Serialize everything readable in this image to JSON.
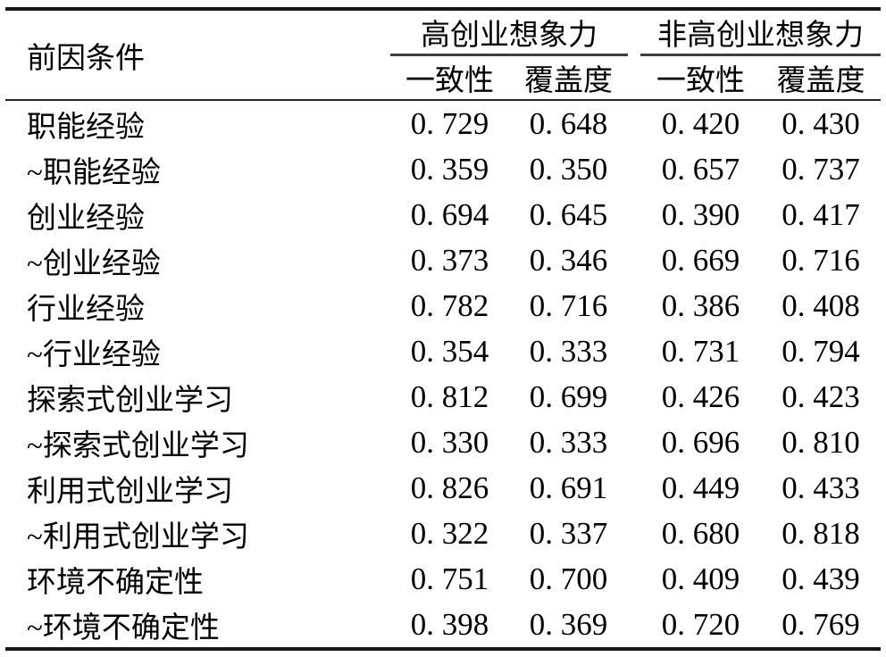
{
  "page": {
    "background": "#ffffff",
    "text_color": "#000000",
    "rule_color": "#161616",
    "midrule_color": "#3e3e3e",
    "header_rule_color": "#262626"
  },
  "table": {
    "header": {
      "antecedent": "前因条件",
      "group1": "高创业想象力",
      "group2": "非高创业想象力",
      "g1_consistency": "一致性",
      "g1_coverage": "覆盖度",
      "g2_consistency": "一致性",
      "g2_coverage": "覆盖度"
    },
    "rows": [
      {
        "label": "职能经验",
        "v1": "0. 729",
        "v2": "0. 648",
        "v3": "0. 420",
        "v4": "0. 430"
      },
      {
        "label": "~职能经验",
        "v1": "0. 359",
        "v2": "0. 350",
        "v3": "0. 657",
        "v4": "0. 737"
      },
      {
        "label": "创业经验",
        "v1": "0. 694",
        "v2": "0. 645",
        "v3": "0. 390",
        "v4": "0. 417"
      },
      {
        "label": "~创业经验",
        "v1": "0. 373",
        "v2": "0. 346",
        "v3": "0. 669",
        "v4": "0. 716"
      },
      {
        "label": "行业经验",
        "v1": "0. 782",
        "v2": "0. 716",
        "v3": "0. 386",
        "v4": "0. 408"
      },
      {
        "label": "~行业经验",
        "v1": "0. 354",
        "v2": "0. 333",
        "v3": "0. 731",
        "v4": "0. 794"
      },
      {
        "label": "探索式创业学习",
        "v1": "0. 812",
        "v2": "0. 699",
        "v3": "0. 426",
        "v4": "0. 423"
      },
      {
        "label": "~探索式创业学习",
        "v1": "0. 330",
        "v2": "0. 333",
        "v3": "0. 696",
        "v4": "0. 810"
      },
      {
        "label": "利用式创业学习",
        "v1": "0. 826",
        "v2": "0. 691",
        "v3": "0. 449",
        "v4": "0. 433"
      },
      {
        "label": "~利用式创业学习",
        "v1": "0. 322",
        "v2": "0. 337",
        "v3": "0. 680",
        "v4": "0. 818"
      },
      {
        "label": "环境不确定性",
        "v1": "0. 751",
        "v2": "0. 700",
        "v3": "0. 409",
        "v4": "0. 439"
      },
      {
        "label": "~环境不确定性",
        "v1": "0. 398",
        "v2": "0. 369",
        "v3": "0. 720",
        "v4": "0. 769"
      }
    ]
  },
  "chart_data": {
    "type": "table",
    "row_header": "前因条件",
    "column_groups": [
      {
        "label": "高创业想象力",
        "columns": [
          "一致性",
          "覆盖度"
        ]
      },
      {
        "label": "非高创业想象力",
        "columns": [
          "一致性",
          "覆盖度"
        ]
      }
    ],
    "rows": [
      {
        "condition": "职能经验",
        "values": [
          0.729,
          0.648,
          0.42,
          0.43
        ]
      },
      {
        "condition": "~职能经验",
        "values": [
          0.359,
          0.35,
          0.657,
          0.737
        ]
      },
      {
        "condition": "创业经验",
        "values": [
          0.694,
          0.645,
          0.39,
          0.417
        ]
      },
      {
        "condition": "~创业经验",
        "values": [
          0.373,
          0.346,
          0.669,
          0.716
        ]
      },
      {
        "condition": "行业经验",
        "values": [
          0.782,
          0.716,
          0.386,
          0.408
        ]
      },
      {
        "condition": "~行业经验",
        "values": [
          0.354,
          0.333,
          0.731,
          0.794
        ]
      },
      {
        "condition": "探索式创业学习",
        "values": [
          0.812,
          0.699,
          0.426,
          0.423
        ]
      },
      {
        "condition": "~探索式创业学习",
        "values": [
          0.33,
          0.333,
          0.696,
          0.81
        ]
      },
      {
        "condition": "利用式创业学习",
        "values": [
          0.826,
          0.691,
          0.449,
          0.433
        ]
      },
      {
        "condition": "~利用式创业学习",
        "values": [
          0.322,
          0.337,
          0.68,
          0.818
        ]
      },
      {
        "condition": "环境不确定性",
        "values": [
          0.751,
          0.7,
          0.409,
          0.439
        ]
      },
      {
        "condition": "~环境不确定性",
        "values": [
          0.398,
          0.369,
          0.72,
          0.769
        ]
      }
    ]
  }
}
